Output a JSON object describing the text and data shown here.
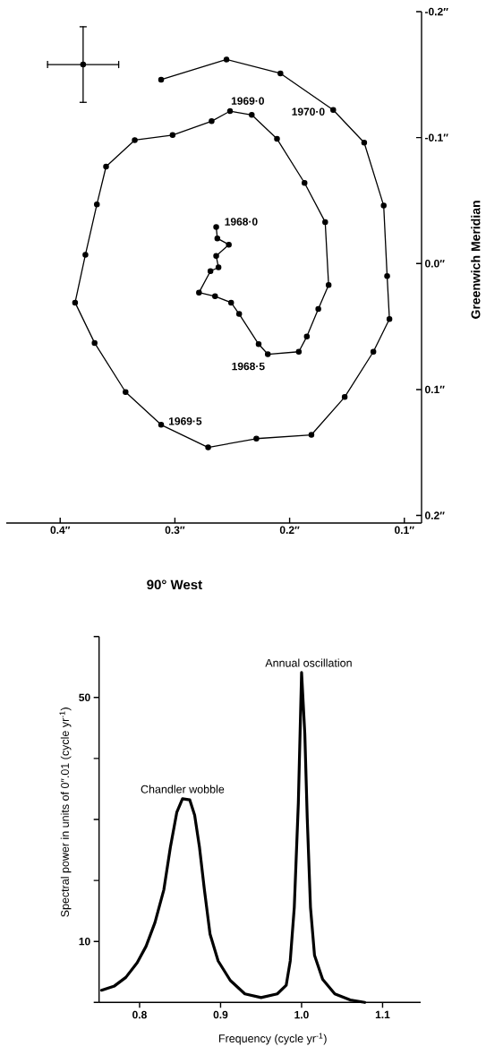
{
  "chart_data": [
    {
      "type": "line",
      "xlabel": "90° West",
      "ylabel": "Greenwich Meridian",
      "xlim": [
        0.447,
        0.085
      ],
      "ylim": [
        0.206,
        -0.2
      ],
      "xticks": [
        {
          "value": 0.4,
          "label": "0.4″"
        },
        {
          "value": 0.3,
          "label": "0.3″"
        },
        {
          "value": 0.2,
          "label": "0.2″"
        },
        {
          "value": 0.1,
          "label": "0.1″"
        }
      ],
      "yticks": [
        {
          "value": -0.2,
          "label": "-0.2″"
        },
        {
          "value": -0.1,
          "label": "-0.1″"
        },
        {
          "value": 0,
          "label": "0.0″"
        },
        {
          "value": 0.1,
          "label": "0.1″"
        },
        {
          "value": 0.2,
          "label": "0.2″"
        }
      ],
      "marker": "circle",
      "series": [
        {
          "color": "#000000",
          "x": [
            0.264,
            0.263,
            0.253,
            0.264,
            0.262,
            0.269,
            0.279,
            0.265,
            0.251,
            0.244,
            0.227,
            0.219,
            0.192,
            0.185,
            0.175,
            0.166,
            0.169,
            0.187,
            0.211,
            0.233,
            0.252,
            0.268,
            0.302,
            0.335,
            0.36,
            0.368,
            0.378,
            0.387,
            0.37,
            0.343,
            0.312,
            0.271,
            0.229,
            0.181,
            0.152,
            0.127,
            0.113,
            0.115,
            0.118,
            0.135,
            0.162,
            0.208,
            0.255,
            0.312
          ],
          "values": [
            -0.029,
            -0.02,
            -0.015,
            -0.006,
            0.003,
            0.006,
            0.023,
            0.026,
            0.031,
            0.04,
            0.064,
            0.072,
            0.07,
            0.058,
            0.036,
            0.017,
            -0.033,
            -0.064,
            -0.099,
            -0.118,
            -0.121,
            -0.113,
            -0.102,
            -0.098,
            -0.077,
            -0.047,
            -0.007,
            0.031,
            0.063,
            0.102,
            0.128,
            0.146,
            0.139,
            0.136,
            0.106,
            0.07,
            0.044,
            0.01,
            -0.046,
            -0.096,
            -0.122,
            -0.151,
            -0.162,
            -0.146
          ]
        },
        {
          "type": "scatter",
          "color": "#000000",
          "x": [
            0.38
          ],
          "values": [
            -0.158
          ],
          "errors": [
            0.03
          ],
          "xerrors": [
            0.031
          ]
        }
      ],
      "annotations": [
        {
          "text": "1968·0",
          "x": 0.264,
          "y": -0.029
        },
        {
          "text": "1968·5",
          "x": 0.219,
          "y": 0.072
        },
        {
          "text": "1969·0",
          "x": 0.252,
          "y": -0.121
        },
        {
          "text": "1969·5",
          "x": 0.312,
          "y": 0.128
        },
        {
          "text": "1970·0",
          "x": 0.162,
          "y": -0.122
        }
      ]
    },
    {
      "type": "line",
      "xlabel": "Frequency (cycle yr$^{-1}$)",
      "ylabel": "Spectral power in units of 0″.01 (cycle yr$^{-1}$)",
      "xlim": [
        0.75,
        1.147
      ],
      "ylim": [
        0,
        60
      ],
      "xticks": [
        0.8,
        0.9,
        {
          "value": 1,
          "label": "1.0"
        },
        1.1
      ],
      "yticks": [
        {
          "value": 0,
          "label": null
        },
        10,
        {
          "value": 20,
          "label": null
        },
        {
          "value": 30,
          "label": null
        },
        {
          "value": 40,
          "label": null
        },
        50,
        {
          "value": 60,
          "label": null
        }
      ],
      "series": [
        {
          "color": "#000000",
          "x": [
            0.753,
            0.769,
            0.783,
            0.797,
            0.808,
            0.819,
            0.83,
            0.838,
            0.846,
            0.853,
            0.862,
            0.868,
            0.874,
            0.88,
            0.887,
            0.897,
            0.912,
            0.93,
            0.95,
            0.97,
            0.981,
            0.986,
            0.991,
            0.996,
            1.0,
            1.004,
            1.007,
            1.011,
            1.016,
            1.026,
            1.041,
            1.06,
            1.078
          ],
          "values": [
            2.0,
            2.7,
            4.1,
            6.5,
            9.2,
            13.1,
            18.5,
            25.4,
            31.2,
            33.4,
            33.2,
            30.7,
            25.4,
            18.5,
            11.2,
            6.8,
            3.6,
            1.4,
            0.8,
            1.4,
            2.8,
            6.8,
            15.6,
            32.7,
            54.1,
            44.0,
            30.2,
            15.6,
            7.7,
            3.8,
            1.4,
            0.4,
            0
          ]
        }
      ],
      "annotations": [
        {
          "text": "Chandler wobble",
          "x": 0.853,
          "y": 33.4
        },
        {
          "text": "Annual oscillation",
          "x": 1.0,
          "y": 54.1
        }
      ]
    }
  ]
}
